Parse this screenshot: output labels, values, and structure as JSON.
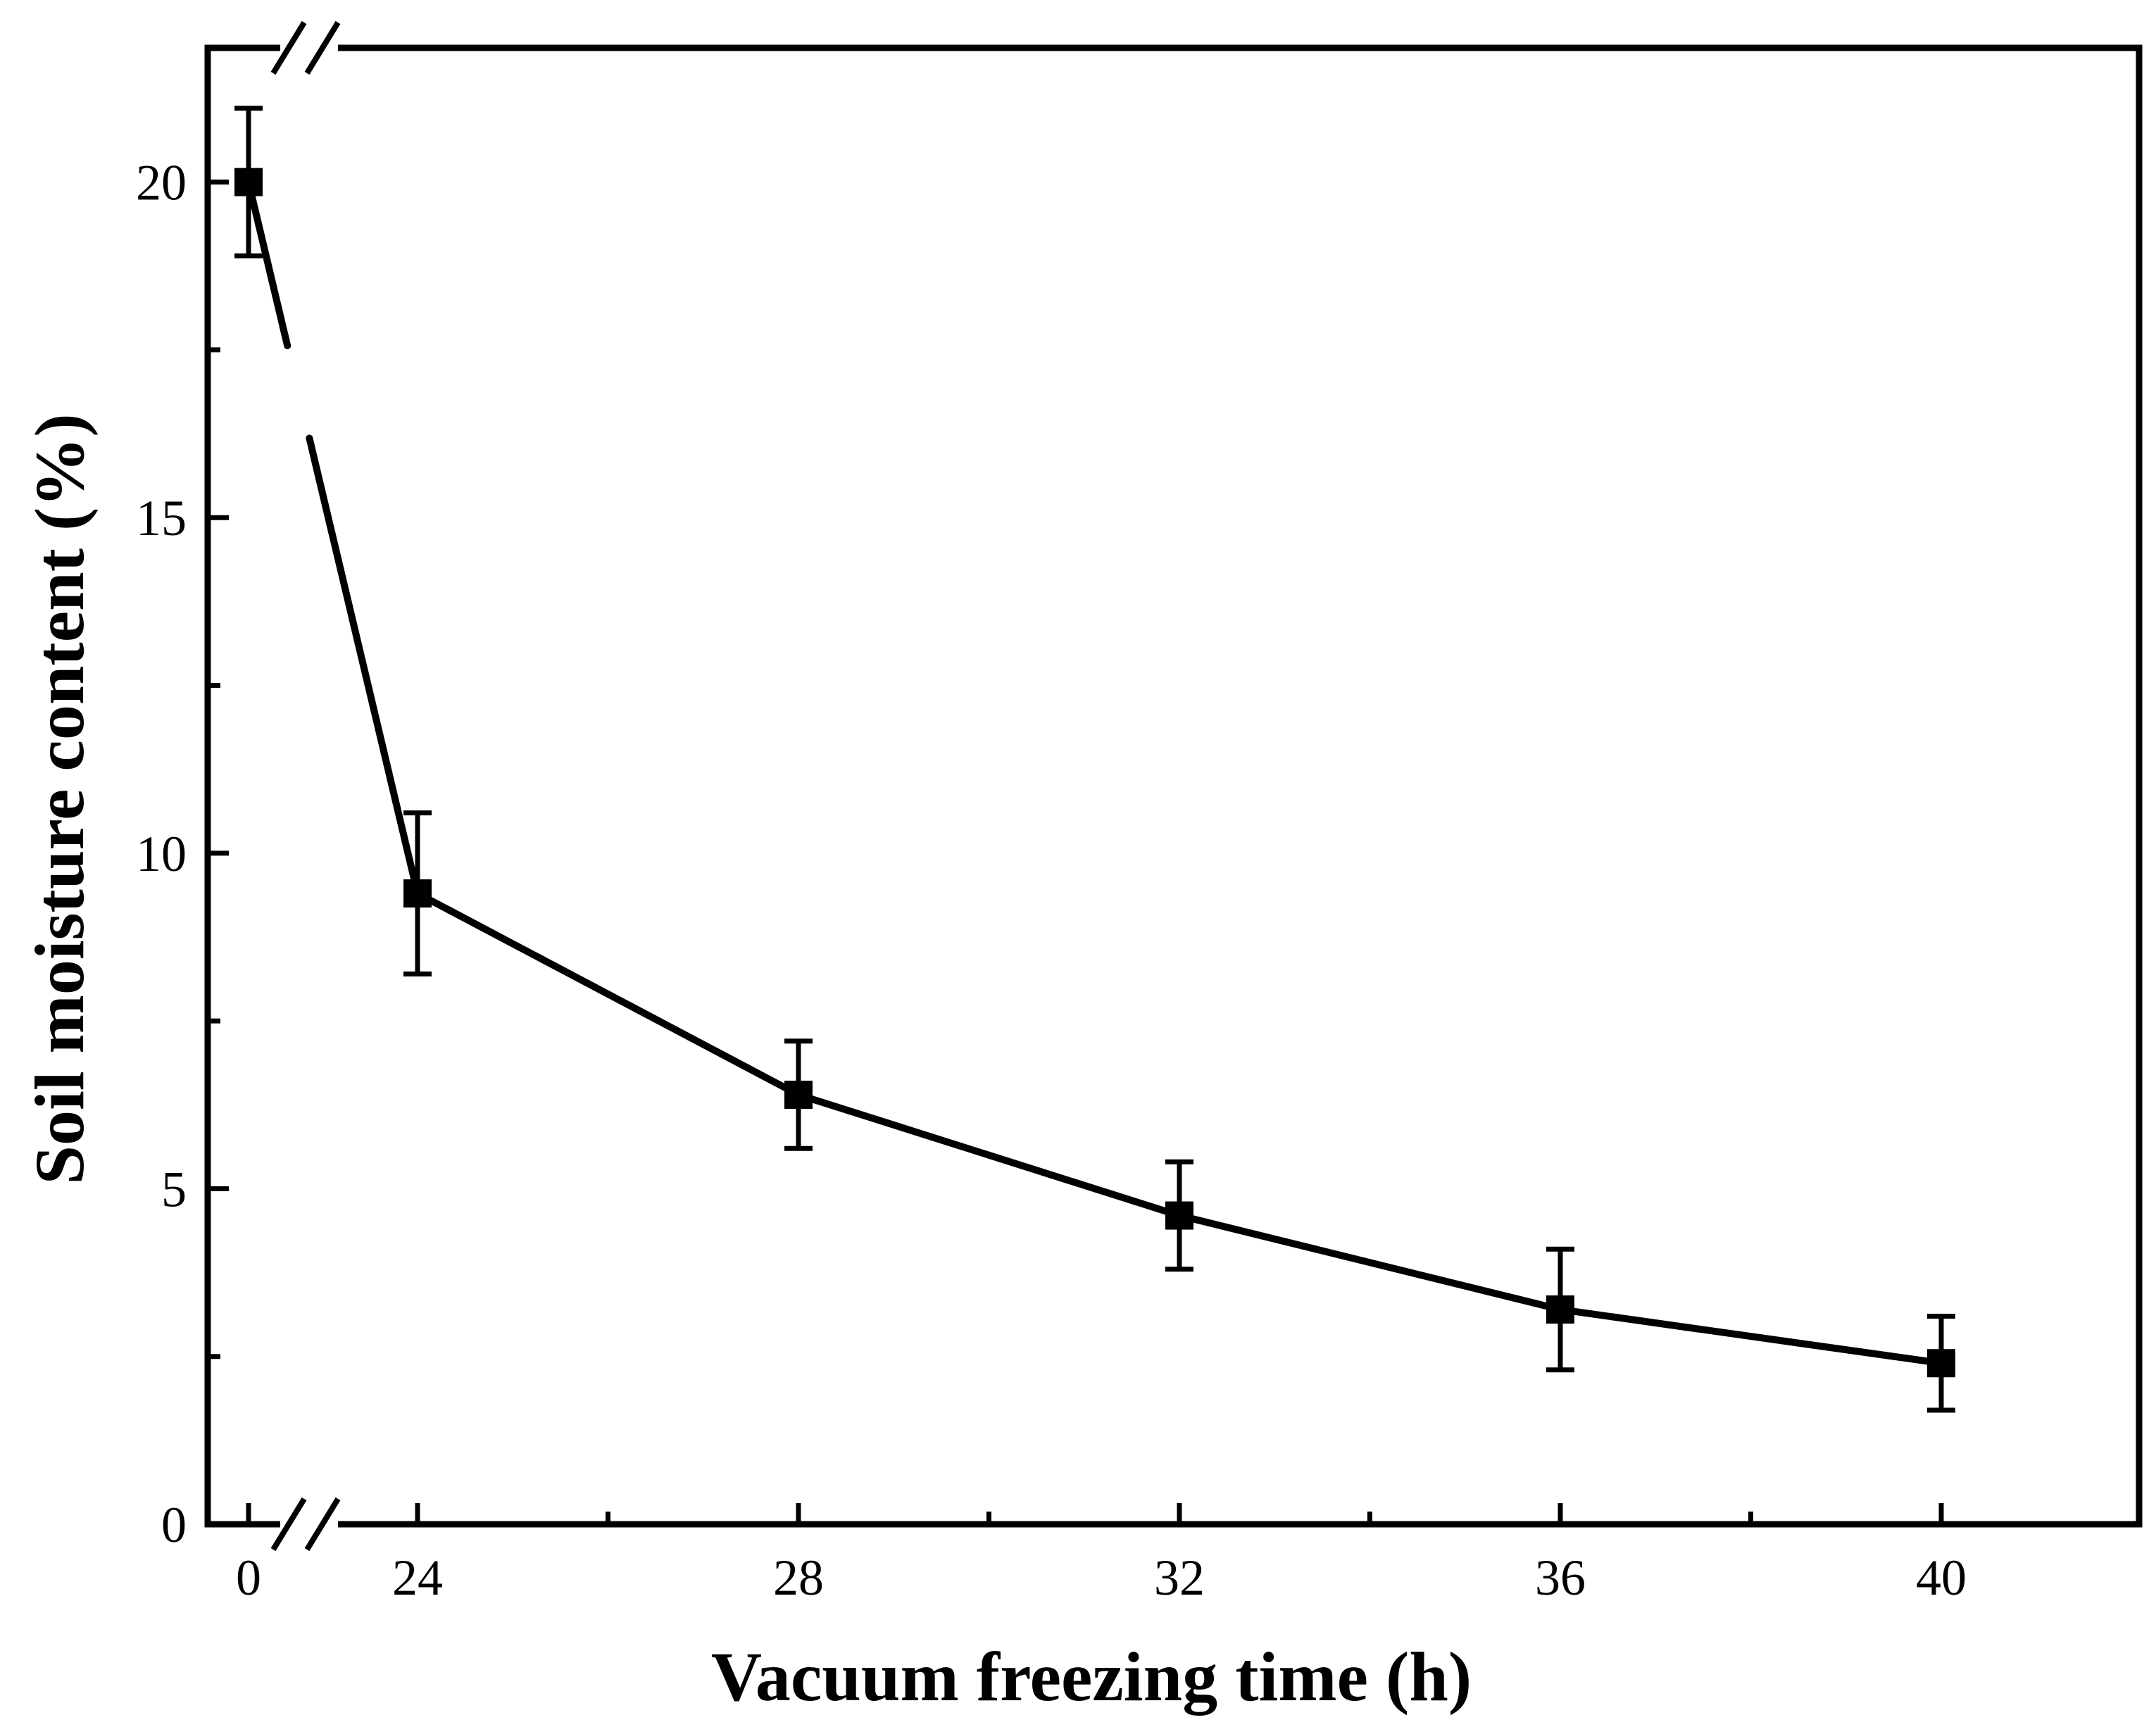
{
  "chart_data": {
    "type": "line",
    "title": "",
    "xlabel": "Vacuum freezing time (h)",
    "ylabel": "Soil moisture content (%)",
    "x_axis_break": [
      0,
      24
    ],
    "xlim": [
      -0.3,
      44.1
    ],
    "ylim": [
      0,
      22
    ],
    "x_ticks": [
      0,
      24,
      28,
      32,
      36,
      40
    ],
    "x_tick_labels": [
      "0",
      "24",
      "28",
      "32",
      "36",
      "40"
    ],
    "x_minor_ticks": [
      26,
      30,
      34,
      38
    ],
    "y_ticks": [
      0,
      5,
      10,
      15,
      20
    ],
    "y_tick_labels": [
      "0",
      "5",
      "10",
      "15",
      "20"
    ],
    "y_minor_ticks": [
      2.5,
      7.5,
      12.5,
      17.5
    ],
    "grid": false,
    "legend": "none",
    "series": [
      {
        "x": [
          0,
          24,
          28,
          32,
          36,
          40
        ],
        "y": [
          20.0,
          9.4,
          6.4,
          4.6,
          3.2,
          2.4
        ],
        "error": [
          1.1,
          1.2,
          0.8,
          0.8,
          0.9,
          0.7
        ],
        "color": "#000000",
        "marker": "square"
      }
    ]
  }
}
